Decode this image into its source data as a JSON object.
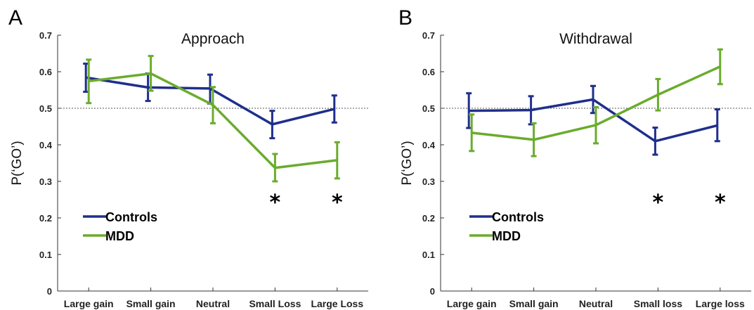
{
  "chart_data": [
    {
      "panel": "A",
      "type": "line",
      "title": "Approach",
      "xlabel": "",
      "ylabel": "P(‘GO’)",
      "ylim": [
        0,
        0.7
      ],
      "yticks": [
        "0",
        "0.1",
        "0.2",
        "0.3",
        "0.4",
        "0.5",
        "0.6",
        "0.7"
      ],
      "categories": [
        "Large gain",
        "Small gain",
        "Neutral",
        "Small Loss",
        "Large Loss"
      ],
      "reference_line": 0.5,
      "series": [
        {
          "name": "Controls",
          "color": "#1f2f8c",
          "values": [
            0.584,
            0.557,
            0.554,
            0.456,
            0.498
          ],
          "err_low": [
            0.545,
            0.52,
            0.513,
            0.418,
            0.461
          ],
          "err_high": [
            0.622,
            0.595,
            0.592,
            0.493,
            0.535
          ]
        },
        {
          "name": "MDD",
          "color": "#6aac2d",
          "values": [
            0.574,
            0.595,
            0.509,
            0.337,
            0.358
          ],
          "err_low": [
            0.514,
            0.548,
            0.459,
            0.3,
            0.308
          ],
          "err_high": [
            0.633,
            0.643,
            0.558,
            0.375,
            0.407
          ]
        }
      ],
      "annotations": [
        {
          "category": "Small Loss",
          "text": "*"
        },
        {
          "category": "Large Loss",
          "text": "*"
        }
      ],
      "legend": "lower-left",
      "grid": false
    },
    {
      "panel": "B",
      "type": "line",
      "title": "Withdrawal",
      "xlabel": "",
      "ylabel": "P(‘GO’)",
      "ylim": [
        0,
        0.7
      ],
      "yticks": [
        "0",
        "0.1",
        "0.2",
        "0.3",
        "0.4",
        "0.5",
        "0.6",
        "0.7"
      ],
      "categories": [
        "Large gain",
        "Small gain",
        "Neutral",
        "Small loss",
        "Large loss"
      ],
      "reference_line": 0.5,
      "series": [
        {
          "name": "Controls",
          "color": "#1f2f8c",
          "values": [
            0.493,
            0.495,
            0.524,
            0.41,
            0.453
          ],
          "err_low": [
            0.446,
            0.456,
            0.487,
            0.373,
            0.41
          ],
          "err_high": [
            0.541,
            0.533,
            0.561,
            0.447,
            0.497
          ]
        },
        {
          "name": "MDD",
          "color": "#6aac2d",
          "values": [
            0.433,
            0.414,
            0.454,
            0.537,
            0.614
          ],
          "err_low": [
            0.383,
            0.369,
            0.404,
            0.494,
            0.566
          ],
          "err_high": [
            0.483,
            0.459,
            0.503,
            0.58,
            0.661
          ]
        }
      ],
      "annotations": [
        {
          "category": "Small loss",
          "text": "*"
        },
        {
          "category": "Large loss",
          "text": "*"
        }
      ],
      "legend": "lower-left",
      "grid": false
    }
  ]
}
